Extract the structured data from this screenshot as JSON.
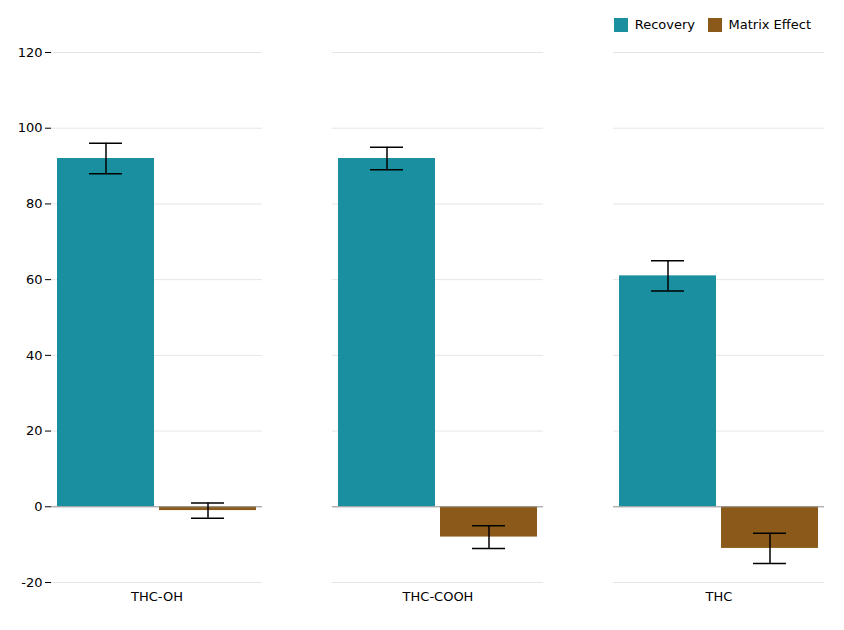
{
  "chart_data": {
    "type": "bar",
    "categories": [
      "THC-OH",
      "THC-COOH",
      "THC"
    ],
    "series": [
      {
        "name": "Recovery",
        "color": "#1a8fa0",
        "values": [
          92,
          92,
          61
        ],
        "errors": [
          4,
          3,
          4
        ]
      },
      {
        "name": "Matrix Effect",
        "color": "#8b5a1a",
        "values": [
          -1,
          -8,
          -11
        ],
        "errors": [
          2,
          3,
          4
        ]
      }
    ],
    "ylim": [
      -20,
      120
    ],
    "yticks": [
      -20,
      0,
      20,
      40,
      60,
      80,
      100,
      120
    ],
    "grid": true,
    "legend": "upper right"
  }
}
